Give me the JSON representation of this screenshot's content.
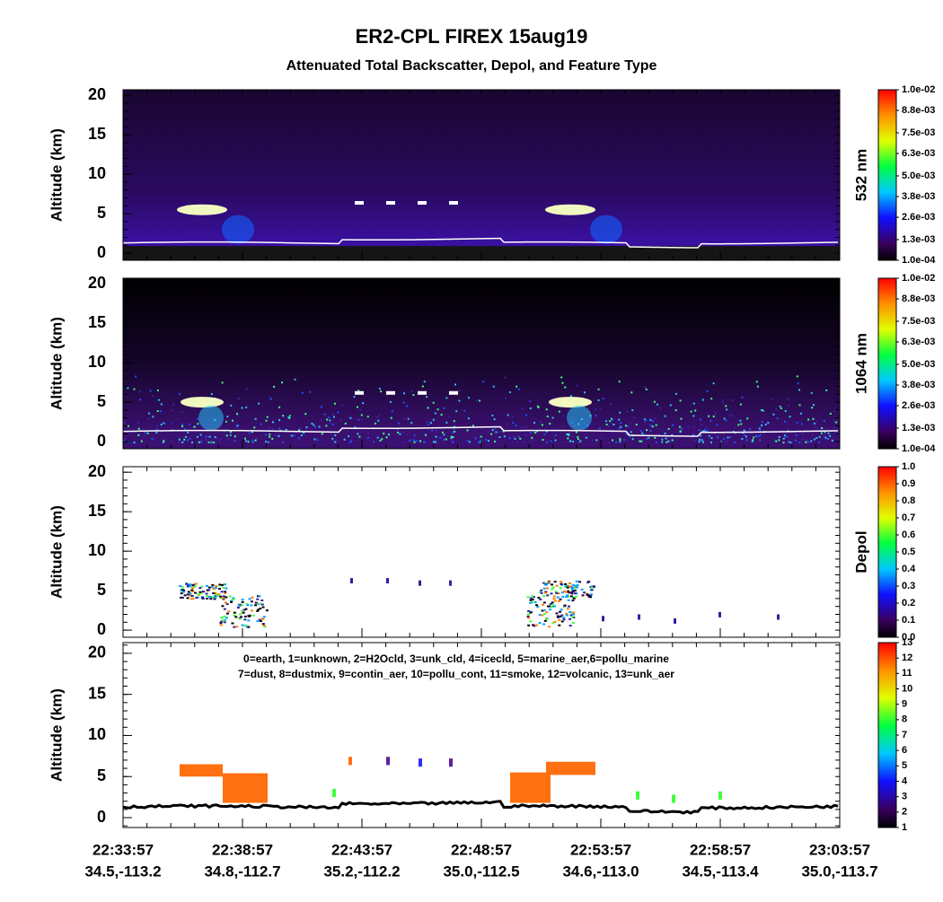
{
  "header": {
    "title": "ER2-CPL FIREX 15aug19",
    "subtitle": "Attenuated Total Backscatter, Depol, and Feature Type"
  },
  "chart_data": [
    {
      "type": "curtain",
      "ylabel": "Altitude (km)",
      "ylim": [
        -0.9,
        20.7
      ],
      "yticks": [
        0,
        5,
        10,
        15,
        20
      ],
      "background": "backscatter",
      "colorbar": {
        "label": "532 nm",
        "lim": [
          0.0001,
          0.01
        ],
        "ticks": [
          {
            "value": 0.0001,
            "label": "1.0e-04"
          },
          {
            "value": 0.0013,
            "label": "1.3e-03"
          },
          {
            "value": 0.0026,
            "label": "2.6e-03"
          },
          {
            "value": 0.0038,
            "label": "3.8e-03"
          },
          {
            "value": 0.005,
            "label": "5.0e-03"
          },
          {
            "value": 0.0063,
            "label": "6.3e-03"
          },
          {
            "value": 0.0075,
            "label": "7.5e-03"
          },
          {
            "value": 0.0088,
            "label": "8.8e-03"
          },
          {
            "value": 0.01,
            "label": "1.0e-02"
          }
        ]
      }
    },
    {
      "type": "curtain",
      "ylabel": "Altitude (km)",
      "ylim": [
        -0.9,
        20.7
      ],
      "yticks": [
        0,
        5,
        10,
        15,
        20
      ],
      "background": "noisy",
      "colorbar": {
        "label": "1064 nm",
        "lim": [
          0.0001,
          0.01
        ],
        "ticks": [
          {
            "value": 0.0001,
            "label": "1.0e-04"
          },
          {
            "value": 0.0013,
            "label": "1.3e-03"
          },
          {
            "value": 0.0026,
            "label": "2.6e-03"
          },
          {
            "value": 0.0038,
            "label": "3.8e-03"
          },
          {
            "value": 0.005,
            "label": "5.0e-03"
          },
          {
            "value": 0.0063,
            "label": "6.3e-03"
          },
          {
            "value": 0.0075,
            "label": "7.5e-03"
          },
          {
            "value": 0.0088,
            "label": "8.8e-03"
          },
          {
            "value": 0.01,
            "label": "1.0e-02"
          }
        ]
      }
    },
    {
      "type": "curtain",
      "ylabel": "Altitude (km)",
      "ylim": [
        -0.9,
        20.7
      ],
      "yticks": [
        0,
        5,
        10,
        15,
        20
      ],
      "background": "depol",
      "colorbar": {
        "label": "Depol",
        "lim": [
          0,
          1
        ],
        "ticks": [
          {
            "value": 0,
            "label": "0.0"
          },
          {
            "value": 0.1,
            "label": "0.1"
          },
          {
            "value": 0.2,
            "label": "0.2"
          },
          {
            "value": 0.3,
            "label": "0.3"
          },
          {
            "value": 0.4,
            "label": "0.4"
          },
          {
            "value": 0.5,
            "label": "0.5"
          },
          {
            "value": 0.6,
            "label": "0.6"
          },
          {
            "value": 0.7,
            "label": "0.7"
          },
          {
            "value": 0.8,
            "label": "0.8"
          },
          {
            "value": 0.9,
            "label": "0.9"
          },
          {
            "value": 1,
            "label": "1.0"
          }
        ]
      }
    },
    {
      "type": "curtain",
      "ylabel": "Altitude (km)",
      "ylim": [
        -1.2,
        21.3
      ],
      "yticks": [
        0,
        5,
        10,
        15,
        20
      ],
      "background": "feature",
      "legend_lines": [
        "0=earth, 1=unknown, 2=H2Ocld, 3=unk_cld, 4=icecld, 5=marine_aer,6=pollu_marine",
        "7=dust, 8=dustmix, 9=contin_aer, 10=pollu_cont, 11=smoke, 12=volcanic, 13=unk_aer"
      ],
      "colorbar": {
        "lim": [
          1,
          13
        ],
        "ticks": [
          1,
          2,
          3,
          4,
          5,
          6,
          7,
          8,
          9,
          10,
          11,
          12,
          13
        ]
      },
      "x_labels": [
        "22:33:57",
        "22:38:57",
        "22:43:57",
        "22:48:57",
        "22:53:57",
        "22:58:57",
        "23:03:57"
      ],
      "x_sublabels": [
        "34.5,-113.2",
        "34.8,-112.7",
        "35.2,-112.2",
        "35.0,-112.5",
        "34.6,-113.0",
        "34.5,-113.4",
        "35.0,-113.7"
      ]
    }
  ]
}
